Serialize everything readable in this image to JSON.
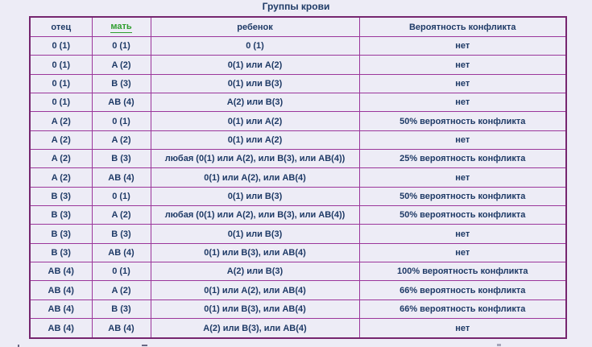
{
  "title": "Группы крови",
  "table": {
    "headers": [
      "отец",
      "мать",
      "ребенок",
      "Вероятность конфликта"
    ],
    "rows": [
      [
        "0 (1)",
        "0 (1)",
        "0 (1)",
        "нет"
      ],
      [
        "0 (1)",
        "A (2)",
        "0(1) или A(2)",
        "нет"
      ],
      [
        "0 (1)",
        "B (3)",
        "0(1) или B(3)",
        "нет"
      ],
      [
        "0 (1)",
        "AB (4)",
        "A(2) или B(3)",
        "нет"
      ],
      [
        "A (2)",
        "0 (1)",
        "0(1) или A(2)",
        "50% вероятность конфликта"
      ],
      [
        "A (2)",
        "A (2)",
        "0(1) или A(2)",
        "нет"
      ],
      [
        "A (2)",
        "B (3)",
        "любая (0(1) или A(2), или B(3), или AB(4))",
        "25% вероятность конфликта"
      ],
      [
        "A (2)",
        "AB (4)",
        "0(1) или A(2), или AB(4)",
        "нет"
      ],
      [
        "B (3)",
        "0 (1)",
        "0(1) или B(3)",
        "50% вероятность конфликта"
      ],
      [
        "B (3)",
        "A (2)",
        "любая (0(1) или A(2), или B(3), или AB(4))",
        "50% вероятность конфликта"
      ],
      [
        "B (3)",
        "B (3)",
        "0(1) или B(3)",
        "нет"
      ],
      [
        "B (3)",
        "AB (4)",
        "0(1) или B(3), или AB(4)",
        "нет"
      ],
      [
        "AB (4)",
        "0 (1)",
        "A(2) или B(3)",
        "100% вероятность конфликта"
      ],
      [
        "AB (4)",
        "A (2)",
        "0(1) или A(2), или AB(4)",
        "66% вероятность конфликта"
      ],
      [
        "AB (4)",
        "B (3)",
        "0(1) или B(3), или AB(4)",
        "66% вероятность конфликта"
      ],
      [
        "AB (4)",
        "AB (4)",
        "A(2) или B(3), или AB(4)",
        "нет"
      ]
    ]
  },
  "colors": {
    "background": "#edecf6",
    "table_border": "#9b369b",
    "table_outer_border": "#76266f",
    "text": "#1e3a66",
    "mother_link_green": "#2f9e2f"
  }
}
